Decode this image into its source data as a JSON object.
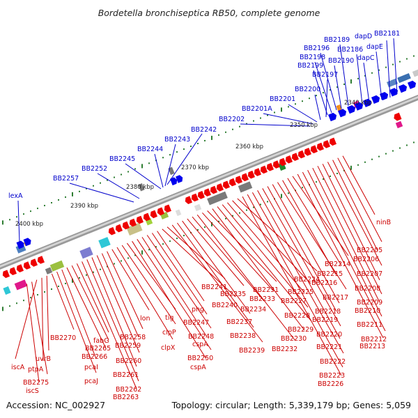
{
  "title": "Bordetella bronchiseptica RB50, complete genome",
  "footer": {
    "accession": "Accession: NC_002927",
    "summary": "Topology: circular; Length: 5,339,179 bp; Genes: 5,059"
  },
  "colors": {
    "forward": "#0000ee",
    "reverse": "#ee0000",
    "backbone": "#888888",
    "tick": "#2e7d32"
  },
  "kbp_labels": [
    "2340 kbp",
    "2350 kbp",
    "2360 kbp",
    "2370 kbp",
    "2380 kbp",
    "2390 kbp",
    "2400 kbp"
  ],
  "top_genes": [
    "BB2181",
    "dapD",
    "dapE",
    "BB2186",
    "dapC",
    "BB2189",
    "BB2190",
    "BB2196",
    "BB2198",
    "BB2199",
    "BB2197",
    "BB2200",
    "BB2201",
    "BB2201A",
    "BB2202",
    "BB2242",
    "BB2243",
    "BB2244",
    "BB2245",
    "BB2252",
    "BB2257",
    "lexA"
  ],
  "bottom_genes": [
    "ninB",
    "BB2205",
    "BB2206",
    "BB2207",
    "BB2208",
    "BB2209",
    "BB2210",
    "BB2211",
    "BB2212",
    "BB2213",
    "BB2214",
    "BB2215",
    "BB2216",
    "BB2217",
    "BB2218",
    "BB2219",
    "BB2220",
    "BB2221",
    "BB2222",
    "BB2223",
    "BB2226",
    "BB2224",
    "BB2225",
    "BB2227",
    "BB2228",
    "BB2229",
    "BB2230",
    "BB2231",
    "BB2233",
    "BB2232",
    "BB2234",
    "BB2235",
    "BB2237",
    "BB2238",
    "BB2239",
    "BB2241",
    "BB2240",
    "phg",
    "BB2247",
    "BB2248",
    "cspA",
    "BB2250",
    "cspA",
    "tig",
    "clpP",
    "clpX",
    "lon",
    "BB2258",
    "BB2259",
    "BB2260",
    "BB2261",
    "BB2262",
    "BB2263",
    "fabG",
    "BB2265",
    "BB2266",
    "pcaI",
    "pcaJ",
    "BB2270",
    "uvrB",
    "ptpA",
    "iscA",
    "BB2275",
    "iscS"
  ]
}
